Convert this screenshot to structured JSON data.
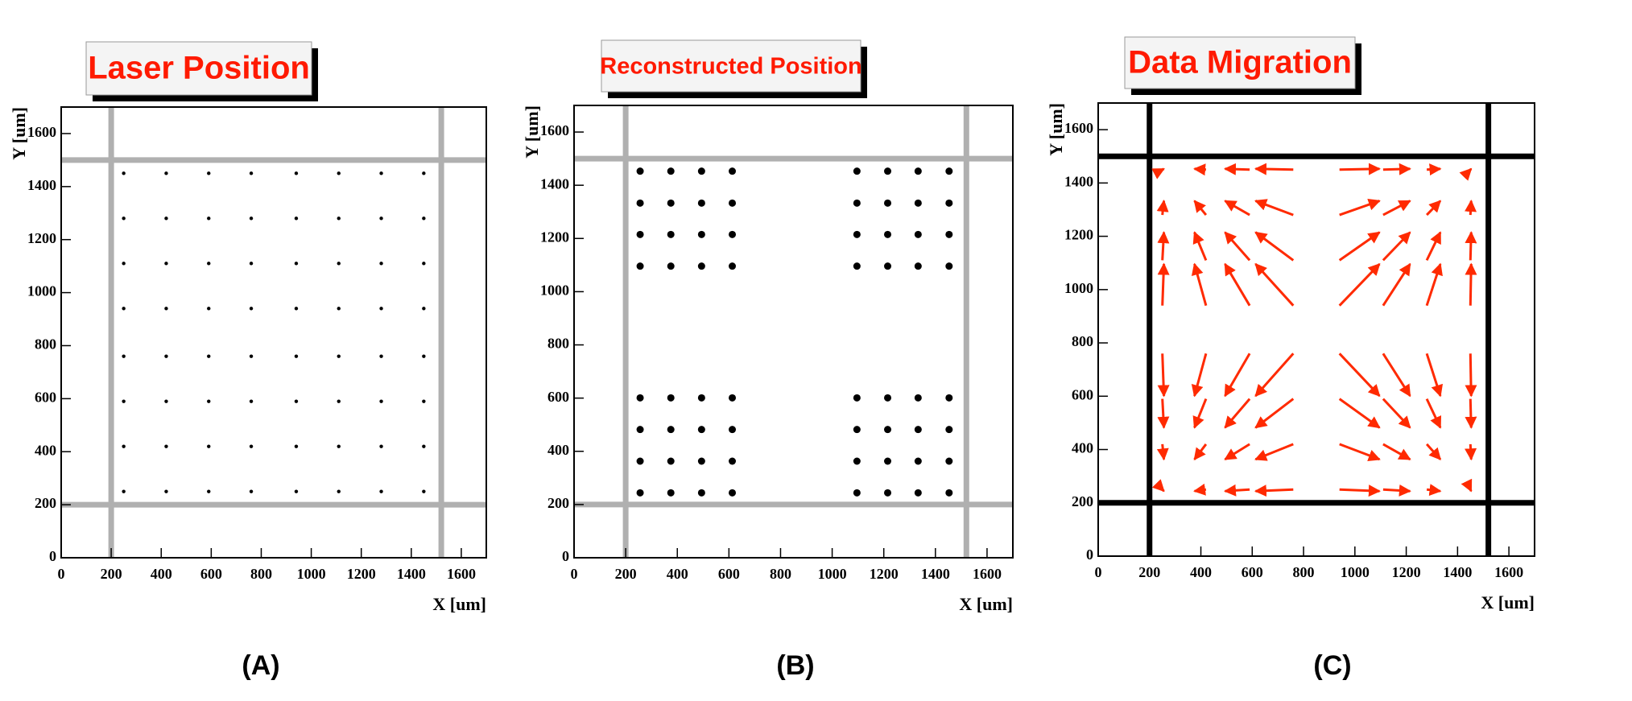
{
  "chart_data": [
    {
      "type": "scatter",
      "title": "Laser Position",
      "panel_label": "(A)",
      "xlabel": "X [um]",
      "ylabel": "Y [um]",
      "color": "#000000",
      "marker_size": 2.2,
      "xlim": [
        0,
        1700
      ],
      "ylim": [
        0,
        1700
      ],
      "xticks": [
        0,
        200,
        400,
        600,
        800,
        1000,
        1200,
        1400,
        1600
      ],
      "yticks": [
        0,
        200,
        400,
        600,
        800,
        1000,
        1200,
        1400,
        1600
      ],
      "guide_lines": {
        "x": [
          200,
          1520
        ],
        "y": [
          200,
          1500
        ],
        "color": "#b0b0b0"
      },
      "x": [
        250,
        420,
        590,
        760,
        940,
        1110,
        1280,
        1450,
        250,
        420,
        590,
        760,
        940,
        1110,
        1280,
        1450,
        250,
        420,
        590,
        760,
        940,
        1110,
        1280,
        1450,
        250,
        420,
        590,
        760,
        940,
        1110,
        1280,
        1450,
        250,
        420,
        590,
        760,
        940,
        1110,
        1280,
        1450,
        250,
        420,
        590,
        760,
        940,
        1110,
        1280,
        1450,
        250,
        420,
        590,
        760,
        940,
        1110,
        1280,
        1450,
        250,
        420,
        590,
        760,
        940,
        1110,
        1280,
        1450
      ],
      "y": [
        250,
        250,
        250,
        250,
        250,
        250,
        250,
        250,
        420,
        420,
        420,
        420,
        420,
        420,
        420,
        420,
        590,
        590,
        590,
        590,
        590,
        590,
        590,
        590,
        760,
        760,
        760,
        760,
        760,
        760,
        760,
        760,
        940,
        940,
        940,
        940,
        940,
        940,
        940,
        940,
        1110,
        1110,
        1110,
        1110,
        1110,
        1110,
        1110,
        1110,
        1280,
        1280,
        1280,
        1280,
        1280,
        1280,
        1280,
        1280,
        1450,
        1450,
        1450,
        1450,
        1450,
        1450,
        1450,
        1450
      ]
    },
    {
      "type": "scatter",
      "title": "Reconstructed Position",
      "panel_label": "(B)",
      "xlabel": "X [um]",
      "ylabel": "Y [um]",
      "color": "#000000",
      "marker_size": 4.5,
      "xlim": [
        0,
        1700
      ],
      "ylim": [
        0,
        1700
      ],
      "xticks": [
        0,
        200,
        400,
        600,
        800,
        1000,
        1200,
        1400,
        1600
      ],
      "yticks": [
        0,
        200,
        400,
        600,
        800,
        1000,
        1200,
        1400,
        1600
      ],
      "guide_lines": {
        "x": [
          200,
          1520
        ],
        "y": [
          200,
          1500
        ],
        "color": "#b0b0b0"
      },
      "x": [
        256,
        375,
        494,
        613,
        1096,
        1215,
        1333,
        1453,
        256,
        375,
        494,
        613,
        1096,
        1215,
        1333,
        1453,
        256,
        375,
        494,
        613,
        1096,
        1215,
        1333,
        1453,
        256,
        375,
        494,
        613,
        1096,
        1215,
        1333,
        1453,
        256,
        375,
        494,
        613,
        1096,
        1215,
        1333,
        1453,
        256,
        375,
        494,
        613,
        1096,
        1215,
        1333,
        1453,
        256,
        375,
        494,
        613,
        1096,
        1215,
        1333,
        1453,
        256,
        375,
        494,
        613,
        1096,
        1215,
        1333,
        1453
      ],
      "y": [
        244,
        244,
        244,
        244,
        244,
        244,
        244,
        244,
        363,
        363,
        363,
        363,
        363,
        363,
        363,
        363,
        482,
        482,
        482,
        482,
        482,
        482,
        482,
        482,
        601,
        601,
        601,
        601,
        601,
        601,
        601,
        601,
        1096,
        1096,
        1096,
        1096,
        1096,
        1096,
        1096,
        1096,
        1215,
        1215,
        1215,
        1215,
        1215,
        1215,
        1215,
        1215,
        1333,
        1333,
        1333,
        1333,
        1333,
        1333,
        1333,
        1333,
        1453,
        1453,
        1453,
        1453,
        1453,
        1453,
        1453,
        1453
      ]
    },
    {
      "type": "quiver",
      "title": "Data Migration",
      "panel_label": "(C)",
      "xlabel": "X [um]",
      "ylabel": "Y [um]",
      "color": "#ff2a00",
      "xlim": [
        0,
        1700
      ],
      "ylim": [
        0,
        1700
      ],
      "xticks": [
        0,
        200,
        400,
        600,
        800,
        1000,
        1200,
        1400,
        1600
      ],
      "yticks": [
        0,
        200,
        400,
        600,
        800,
        1000,
        1200,
        1400,
        1600
      ],
      "guide_lines": {
        "x": [
          200,
          1520
        ],
        "y": [
          200,
          1500
        ],
        "color": "#000000"
      },
      "x": [
        250,
        420,
        590,
        760,
        940,
        1110,
        1280,
        1450,
        250,
        420,
        590,
        760,
        940,
        1110,
        1280,
        1450,
        250,
        420,
        590,
        760,
        940,
        1110,
        1280,
        1450,
        250,
        420,
        590,
        760,
        940,
        1110,
        1280,
        1450,
        250,
        420,
        590,
        760,
        940,
        1110,
        1280,
        1450,
        250,
        420,
        590,
        760,
        940,
        1110,
        1280,
        1450,
        250,
        420,
        590,
        760,
        940,
        1110,
        1280,
        1450,
        250,
        420,
        590,
        760,
        940,
        1110,
        1280,
        1450
      ],
      "y": [
        250,
        250,
        250,
        250,
        250,
        250,
        250,
        250,
        420,
        420,
        420,
        420,
        420,
        420,
        420,
        420,
        590,
        590,
        590,
        590,
        590,
        590,
        590,
        590,
        760,
        760,
        760,
        760,
        760,
        760,
        760,
        760,
        940,
        940,
        940,
        940,
        940,
        940,
        940,
        940,
        1110,
        1110,
        1110,
        1110,
        1110,
        1110,
        1110,
        1110,
        1280,
        1280,
        1280,
        1280,
        1280,
        1280,
        1280,
        1280,
        1450,
        1450,
        1450,
        1450,
        1450,
        1450,
        1450,
        1450
      ],
      "x_end": [
        256,
        375,
        494,
        613,
        1096,
        1215,
        1333,
        1453,
        256,
        375,
        494,
        613,
        1096,
        1215,
        1333,
        1453,
        256,
        375,
        494,
        613,
        1096,
        1215,
        1333,
        1453,
        256,
        375,
        494,
        613,
        1096,
        1215,
        1333,
        1453,
        256,
        375,
        494,
        613,
        1096,
        1215,
        1333,
        1453,
        256,
        375,
        494,
        613,
        1096,
        1215,
        1333,
        1453,
        256,
        375,
        494,
        613,
        1096,
        1215,
        1333,
        1453,
        256,
        375,
        494,
        613,
        1096,
        1215,
        1333,
        1453
      ],
      "y_end": [
        244,
        244,
        244,
        244,
        244,
        244,
        244,
        244,
        363,
        363,
        363,
        363,
        363,
        363,
        363,
        363,
        482,
        482,
        482,
        482,
        482,
        482,
        482,
        482,
        601,
        601,
        601,
        601,
        601,
        601,
        601,
        601,
        1096,
        1096,
        1096,
        1096,
        1096,
        1096,
        1096,
        1096,
        1215,
        1215,
        1215,
        1215,
        1215,
        1215,
        1215,
        1215,
        1333,
        1333,
        1333,
        1333,
        1333,
        1333,
        1333,
        1333,
        1453,
        1453,
        1453,
        1453,
        1453,
        1453,
        1453,
        1453
      ]
    }
  ]
}
